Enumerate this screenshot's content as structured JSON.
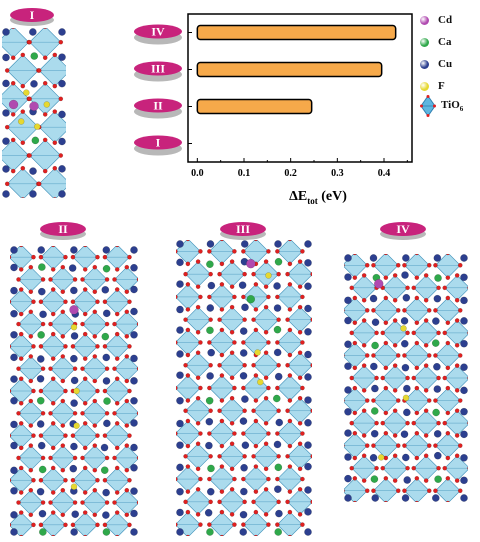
{
  "chart_data": {
    "type": "bar",
    "orientation": "horizontal",
    "categories": [
      "I",
      "II",
      "III",
      "IV"
    ],
    "values": [
      0.0,
      0.245,
      0.395,
      0.425
    ],
    "xlabel": "ΔE",
    "xlabel_sub": "tot",
    "xlabel_unit": "(eV)",
    "xlim": [
      -0.02,
      0.46
    ],
    "xticks": [
      "0.0",
      "0.1",
      "0.2",
      "0.3",
      "0.4"
    ],
    "xtick_values": [
      0.0,
      0.1,
      0.2,
      0.3,
      0.4
    ],
    "grid": false,
    "bar_color": "#f6a94a"
  },
  "legend": {
    "items": [
      {
        "label": "Cd",
        "color": "#b04ab0"
      },
      {
        "label": "Ca",
        "color": "#2fa84a"
      },
      {
        "label": "Cu",
        "color": "#2c3f8f"
      },
      {
        "label": "F",
        "color": "#e6d830"
      }
    ],
    "tio6_label": "TiO",
    "tio6_sub": "6"
  },
  "structures": {
    "I": "I",
    "II": "II",
    "III": "III",
    "IV": "IV"
  },
  "colors": {
    "badge": "#c8237c",
    "polyhedron": "#7ec8e3",
    "oxygen": "#e02020"
  }
}
